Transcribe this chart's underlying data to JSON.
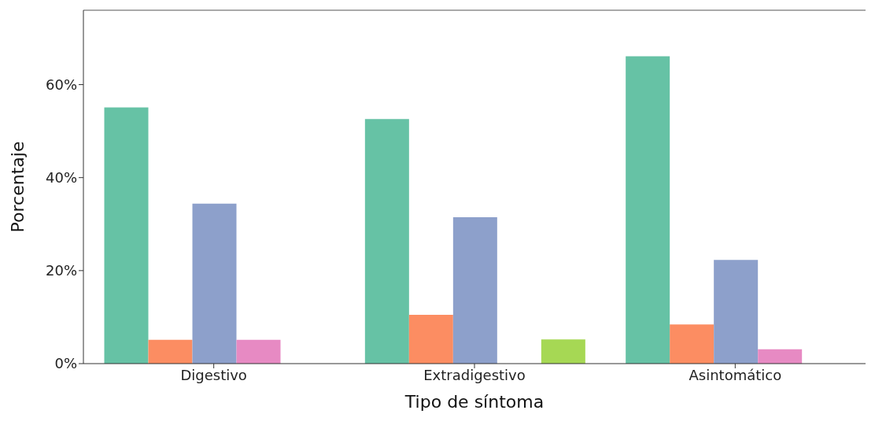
{
  "chart_data": {
    "type": "bar",
    "xlabel": "Tipo de síntoma",
    "ylabel": "Porcentaje",
    "categories": [
      "Digestivo",
      "Extradigestivo",
      "Asintomático"
    ],
    "series": [
      {
        "color": "#66c2a5",
        "values": [
          55.1,
          52.6,
          66.1
        ]
      },
      {
        "color": "#fc8d62",
        "values": [
          5.1,
          10.5,
          8.4
        ]
      },
      {
        "color": "#8da0cb",
        "values": [
          34.4,
          31.5,
          22.3
        ]
      },
      {
        "color": "#e78ac3",
        "values": [
          5.1,
          null,
          3.1
        ]
      },
      {
        "color": "#a6d854",
        "values": [
          null,
          5.2,
          null
        ]
      }
    ],
    "ylim": [
      0,
      76
    ],
    "yticks": [
      {
        "value": 0,
        "label": "0%"
      },
      {
        "value": 20,
        "label": "20%"
      },
      {
        "value": 40,
        "label": "40%"
      },
      {
        "value": 60,
        "label": "60%"
      }
    ],
    "grid": false,
    "legend": false
  }
}
